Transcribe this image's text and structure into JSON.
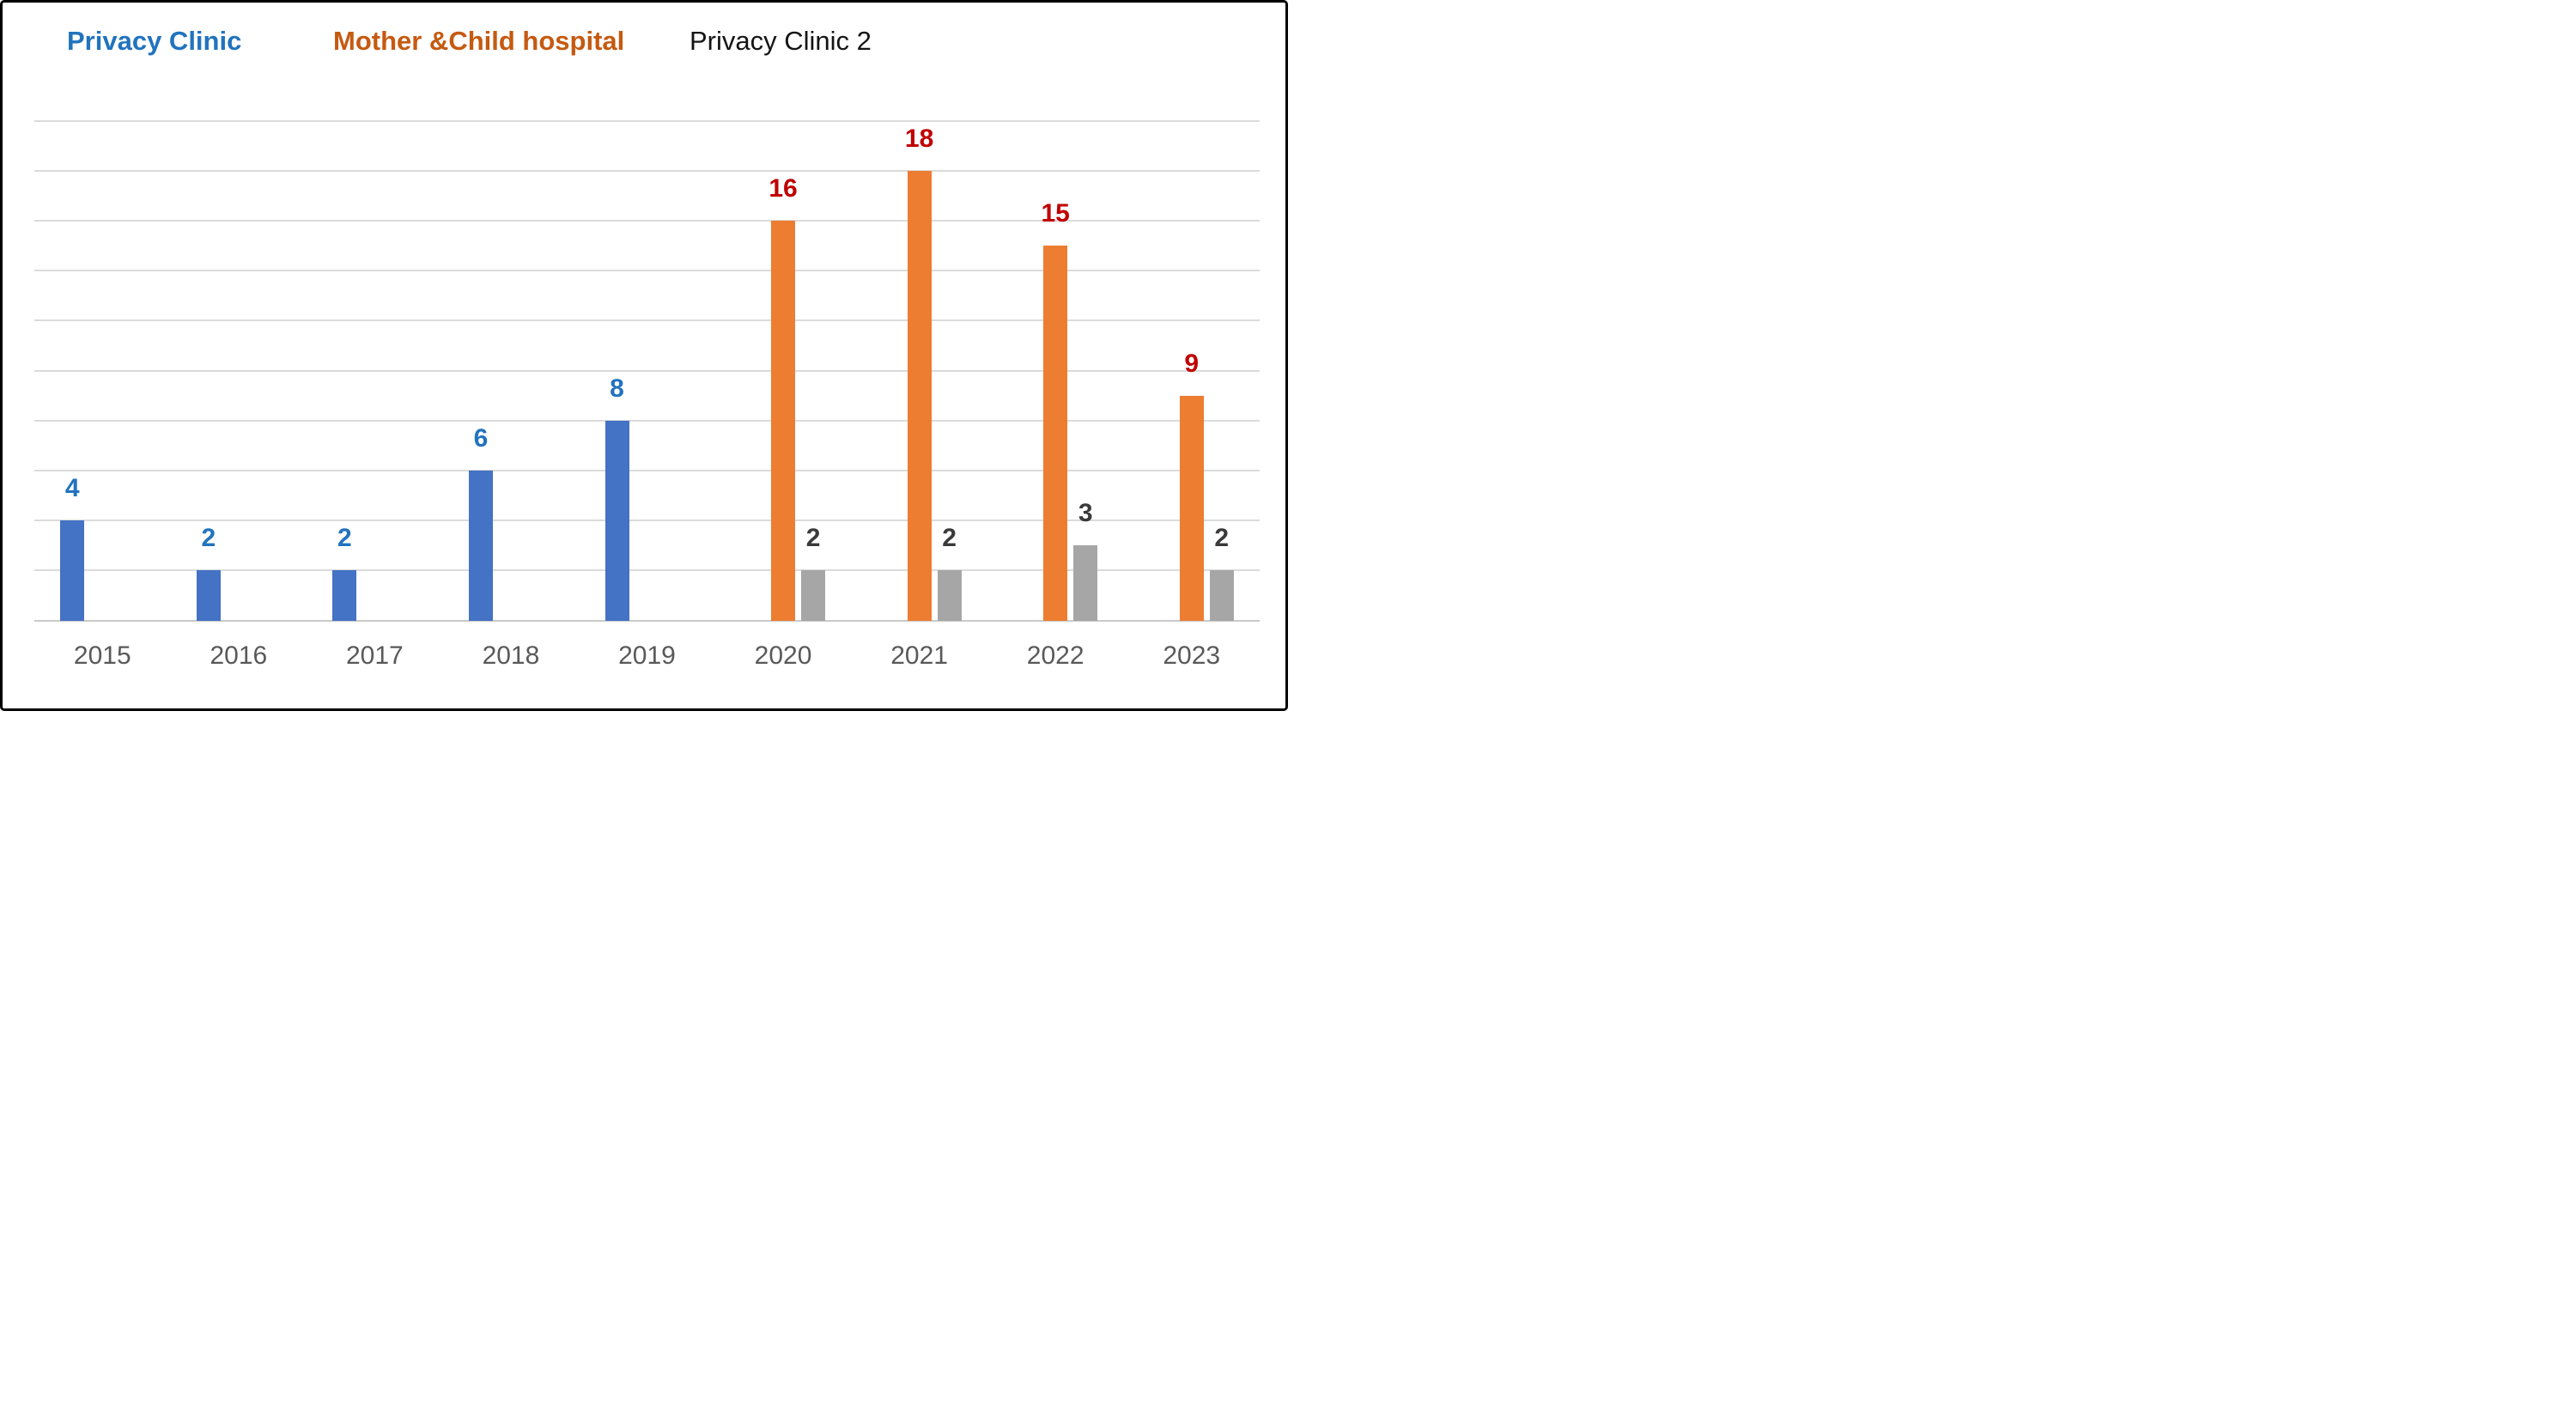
{
  "legend": {
    "items": [
      {
        "label": "Privacy Clinic",
        "color": "#2173BE",
        "bold": true
      },
      {
        "label": "Mother &Child hospital",
        "color": "#C55A11",
        "bold": true
      },
      {
        "label": "Privacy Clinic 2",
        "color": "#141414",
        "bold": false
      }
    ]
  },
  "colors": {
    "background": "#FFFFFF",
    "border": "#000000",
    "gridline": "#DBDBDB",
    "axis_line": "#C9C9C9",
    "tick_label": "#595959"
  },
  "chart_data": {
    "type": "bar",
    "title": "",
    "xlabel": "",
    "ylabel": "",
    "categories": [
      "2015",
      "2016",
      "2017",
      "2018",
      "2019",
      "2020",
      "2021",
      "2022",
      "2023"
    ],
    "series": [
      {
        "name": "Privacy Clinic",
        "color": "#4472C4",
        "label_color": "#2173BE",
        "values": [
          4,
          2,
          2,
          6,
          8,
          null,
          null,
          null,
          null
        ]
      },
      {
        "name": "Mother &Child hospital",
        "color": "#ED7D31",
        "label_color": "#C00000",
        "values": [
          null,
          null,
          null,
          null,
          null,
          16,
          18,
          15,
          9
        ]
      },
      {
        "name": "Privacy Clinic 2",
        "color": "#A6A6A6",
        "label_color": "#3A3A3A",
        "values": [
          null,
          null,
          null,
          null,
          null,
          2,
          2,
          3,
          2
        ]
      }
    ],
    "ylim": [
      0,
      20
    ],
    "gridline_step": 2,
    "grid": true,
    "y_axis_labels_visible": false,
    "data_labels": true,
    "legend_position": "top"
  }
}
